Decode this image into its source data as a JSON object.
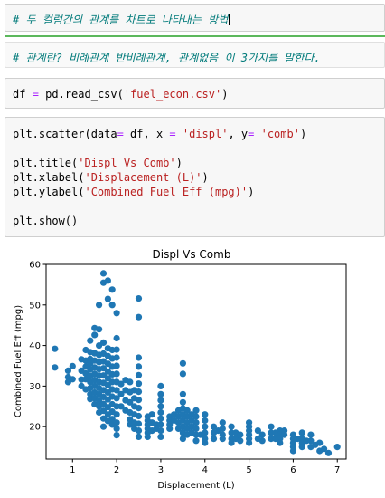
{
  "cells": {
    "md1": "# 두 컬럼간의 관계를 차트로 나타내는 방법",
    "md2": "# 관계란? 비례관계 반비례관계, 관계없음 이 3가지를 말한다.",
    "code1": {
      "var": "df",
      "eq": "=",
      "call": "pd.read_csv(",
      "arg": "'fuel_econ.csv'",
      "close": ")"
    },
    "code2": {
      "l1_a": "plt.scatter(data",
      "l1_eq1": "=",
      "l1_b": " df, x ",
      "l1_eq2": "=",
      "l1_s1": "'displ'",
      "l1_c": ", y",
      "l1_eq3": "=",
      "l1_s2": "'comb'",
      "l1_d": ")",
      "l2_a": "plt.title(",
      "l2_s": "'Displ Vs Comb'",
      "l2_b": ")",
      "l3_a": "plt.xlabel(",
      "l3_s": "'Displacement (L)'",
      "l3_b": ")",
      "l4_a": "plt.ylabel(",
      "l4_s": "'Combined Fuel Eff (mpg)'",
      "l4_b": ")",
      "l5": "plt.show()"
    }
  },
  "chart_data": {
    "type": "scatter",
    "title": "Displ Vs Comb",
    "xlabel": "Displacement (L)",
    "ylabel": "Combined Fuel Eff (mpg)",
    "xlim": [
      0.4,
      7.2
    ],
    "ylim": [
      12,
      60
    ],
    "xticks": [
      "1",
      "2",
      "3",
      "4",
      "5",
      "6",
      "7"
    ],
    "yticks": [
      "20",
      "30",
      "40",
      "50",
      "60"
    ],
    "color": "#1f77b4",
    "points": [
      [
        0.6,
        39.2
      ],
      [
        0.6,
        34.6
      ],
      [
        0.9,
        32.2
      ],
      [
        0.9,
        33.8
      ],
      [
        0.9,
        31.0
      ],
      [
        1.0,
        34.9
      ],
      [
        1.0,
        31.7
      ],
      [
        1.2,
        36.6
      ],
      [
        1.2,
        33.8
      ],
      [
        1.2,
        31.6
      ],
      [
        1.2,
        30.0
      ],
      [
        1.3,
        38.9
      ],
      [
        1.3,
        36.3
      ],
      [
        1.3,
        34.8
      ],
      [
        1.3,
        33.1
      ],
      [
        1.3,
        31.7
      ],
      [
        1.3,
        29.2
      ],
      [
        1.4,
        41.2
      ],
      [
        1.4,
        38.4
      ],
      [
        1.4,
        36.7
      ],
      [
        1.4,
        35.6
      ],
      [
        1.4,
        34.1
      ],
      [
        1.4,
        32.5
      ],
      [
        1.4,
        31.0
      ],
      [
        1.4,
        29.5
      ],
      [
        1.4,
        28.0
      ],
      [
        1.4,
        26.8
      ],
      [
        1.5,
        44.3
      ],
      [
        1.5,
        42.6
      ],
      [
        1.5,
        38.1
      ],
      [
        1.5,
        36.3
      ],
      [
        1.5,
        34.6
      ],
      [
        1.5,
        33.0
      ],
      [
        1.5,
        31.5
      ],
      [
        1.5,
        30.0
      ],
      [
        1.5,
        28.4
      ],
      [
        1.5,
        27.0
      ],
      [
        1.5,
        25.5
      ],
      [
        1.6,
        50.0
      ],
      [
        1.6,
        44.0
      ],
      [
        1.6,
        40.0
      ],
      [
        1.6,
        37.7
      ],
      [
        1.6,
        35.9
      ],
      [
        1.6,
        34.2
      ],
      [
        1.6,
        32.6
      ],
      [
        1.6,
        31.0
      ],
      [
        1.6,
        29.5
      ],
      [
        1.6,
        28.0
      ],
      [
        1.6,
        26.4
      ],
      [
        1.6,
        25.0
      ],
      [
        1.6,
        23.5
      ],
      [
        1.7,
        57.8
      ],
      [
        1.7,
        55.5
      ],
      [
        1.7,
        40.7
      ],
      [
        1.7,
        38.0
      ],
      [
        1.7,
        36.1
      ],
      [
        1.7,
        34.4
      ],
      [
        1.7,
        32.6
      ],
      [
        1.7,
        30.8
      ],
      [
        1.7,
        29.0
      ],
      [
        1.7,
        27.3
      ],
      [
        1.7,
        25.6
      ],
      [
        1.7,
        23.9
      ],
      [
        1.7,
        22.0
      ],
      [
        1.7,
        20.0
      ],
      [
        1.8,
        56.0
      ],
      [
        1.8,
        51.5
      ],
      [
        1.8,
        39.3
      ],
      [
        1.8,
        37.4
      ],
      [
        1.8,
        35.5
      ],
      [
        1.8,
        33.6
      ],
      [
        1.8,
        31.9
      ],
      [
        1.8,
        30.2
      ],
      [
        1.8,
        28.4
      ],
      [
        1.8,
        26.7
      ],
      [
        1.8,
        24.8
      ],
      [
        1.8,
        23.0
      ],
      [
        1.8,
        21.4
      ],
      [
        1.9,
        53.8
      ],
      [
        1.9,
        50.0
      ],
      [
        1.9,
        38.9
      ],
      [
        1.9,
        36.8
      ],
      [
        1.9,
        34.8
      ],
      [
        1.9,
        32.9
      ],
      [
        1.9,
        31.0
      ],
      [
        1.9,
        29.2
      ],
      [
        1.9,
        27.4
      ],
      [
        1.9,
        25.5
      ],
      [
        1.9,
        23.7
      ],
      [
        1.9,
        21.9
      ],
      [
        1.9,
        20.5
      ],
      [
        2.0,
        48.0
      ],
      [
        2.0,
        41.8
      ],
      [
        2.0,
        39.0
      ],
      [
        2.0,
        37.0
      ],
      [
        2.0,
        35.0
      ],
      [
        2.0,
        33.0
      ],
      [
        2.0,
        31.0
      ],
      [
        2.0,
        29.0
      ],
      [
        2.0,
        27.0
      ],
      [
        2.0,
        25.0
      ],
      [
        2.0,
        23.0
      ],
      [
        2.0,
        21.0
      ],
      [
        2.0,
        19.5
      ],
      [
        2.0,
        17.9
      ],
      [
        2.1,
        30.5
      ],
      [
        2.1,
        28.0
      ],
      [
        2.1,
        25.0
      ],
      [
        2.2,
        31.5
      ],
      [
        2.2,
        29.0
      ],
      [
        2.2,
        26.5
      ],
      [
        2.2,
        24.0
      ],
      [
        2.3,
        31.0
      ],
      [
        2.3,
        28.5
      ],
      [
        2.3,
        26.0
      ],
      [
        2.3,
        23.5
      ],
      [
        2.3,
        21.8
      ],
      [
        2.3,
        20.5
      ],
      [
        2.4,
        29.0
      ],
      [
        2.4,
        27.0
      ],
      [
        2.4,
        25.0
      ],
      [
        2.4,
        23.0
      ],
      [
        2.4,
        21.0
      ],
      [
        2.4,
        19.5
      ],
      [
        2.5,
        51.6
      ],
      [
        2.5,
        47.0
      ],
      [
        2.5,
        37.0
      ],
      [
        2.5,
        34.8
      ],
      [
        2.5,
        32.7
      ],
      [
        2.5,
        30.6
      ],
      [
        2.5,
        28.6
      ],
      [
        2.5,
        26.6
      ],
      [
        2.5,
        24.6
      ],
      [
        2.5,
        22.6
      ],
      [
        2.5,
        20.7
      ],
      [
        2.5,
        19.0
      ],
      [
        2.5,
        17.5
      ],
      [
        2.7,
        22.5
      ],
      [
        2.7,
        21.5
      ],
      [
        2.7,
        20.5
      ],
      [
        2.7,
        19.5
      ],
      [
        2.7,
        18.5
      ],
      [
        2.7,
        17.5
      ],
      [
        2.8,
        23.0
      ],
      [
        2.8,
        21.0
      ],
      [
        2.8,
        19.0
      ],
      [
        2.9,
        20.5
      ],
      [
        2.9,
        19.5
      ],
      [
        3.0,
        30.0
      ],
      [
        3.0,
        28.0
      ],
      [
        3.0,
        26.5
      ],
      [
        3.0,
        25.0
      ],
      [
        3.0,
        23.5
      ],
      [
        3.0,
        22.0
      ],
      [
        3.0,
        20.5
      ],
      [
        3.0,
        19.0
      ],
      [
        3.0,
        17.5
      ],
      [
        3.2,
        22.5
      ],
      [
        3.2,
        21.5
      ],
      [
        3.2,
        20.5
      ],
      [
        3.2,
        19.5
      ],
      [
        3.3,
        23.0
      ],
      [
        3.3,
        21.5
      ],
      [
        3.4,
        24.0
      ],
      [
        3.4,
        22.5
      ],
      [
        3.4,
        21.0
      ],
      [
        3.4,
        19.5
      ],
      [
        3.5,
        35.6
      ],
      [
        3.5,
        33.0
      ],
      [
        3.5,
        28.0
      ],
      [
        3.5,
        26.0
      ],
      [
        3.5,
        24.5
      ],
      [
        3.5,
        23.0
      ],
      [
        3.5,
        21.5
      ],
      [
        3.5,
        20.0
      ],
      [
        3.5,
        18.5
      ],
      [
        3.5,
        17.0
      ],
      [
        3.6,
        24.0
      ],
      [
        3.6,
        22.5
      ],
      [
        3.6,
        21.0
      ],
      [
        3.6,
        19.5
      ],
      [
        3.6,
        18.0
      ],
      [
        3.7,
        23.0
      ],
      [
        3.7,
        21.5
      ],
      [
        3.7,
        20.0
      ],
      [
        3.7,
        18.5
      ],
      [
        3.8,
        24.0
      ],
      [
        3.8,
        22.5
      ],
      [
        3.8,
        21.0
      ],
      [
        3.8,
        19.5
      ],
      [
        3.8,
        18.0
      ],
      [
        3.8,
        16.5
      ],
      [
        3.9,
        18.0
      ],
      [
        4.0,
        23.0
      ],
      [
        4.0,
        21.5
      ],
      [
        4.0,
        20.0
      ],
      [
        4.0,
        18.5
      ],
      [
        4.0,
        17.0
      ],
      [
        4.0,
        16.0
      ],
      [
        4.2,
        20.0
      ],
      [
        4.2,
        18.5
      ],
      [
        4.2,
        17.0
      ],
      [
        4.3,
        19.0
      ],
      [
        4.4,
        21.0
      ],
      [
        4.4,
        19.5
      ],
      [
        4.4,
        18.0
      ],
      [
        4.4,
        17.0
      ],
      [
        4.6,
        20.0
      ],
      [
        4.6,
        18.5
      ],
      [
        4.6,
        17.0
      ],
      [
        4.6,
        16.0
      ],
      [
        4.7,
        18.5
      ],
      [
        4.7,
        17.0
      ],
      [
        4.8,
        18.0
      ],
      [
        4.8,
        16.5
      ],
      [
        5.0,
        21.0
      ],
      [
        5.0,
        20.0
      ],
      [
        5.0,
        19.0
      ],
      [
        5.0,
        18.0
      ],
      [
        5.0,
        17.0
      ],
      [
        5.0,
        16.0
      ],
      [
        5.2,
        19.0
      ],
      [
        5.2,
        17.0
      ],
      [
        5.3,
        18.0
      ],
      [
        5.3,
        16.5
      ],
      [
        5.5,
        20.0
      ],
      [
        5.5,
        18.5
      ],
      [
        5.5,
        17.0
      ],
      [
        5.6,
        18.5
      ],
      [
        5.6,
        17.0
      ],
      [
        5.7,
        19.0
      ],
      [
        5.7,
        18.0
      ],
      [
        5.7,
        17.0
      ],
      [
        5.7,
        16.0
      ],
      [
        5.8,
        19.0
      ],
      [
        5.8,
        18.0
      ],
      [
        6.0,
        18.0
      ],
      [
        6.0,
        17.0
      ],
      [
        6.0,
        16.0
      ],
      [
        6.0,
        15.0
      ],
      [
        6.0,
        14.0
      ],
      [
        6.1,
        17.0
      ],
      [
        6.2,
        18.5
      ],
      [
        6.2,
        17.0
      ],
      [
        6.2,
        16.0
      ],
      [
        6.2,
        15.0
      ],
      [
        6.3,
        16.5
      ],
      [
        6.4,
        18.0
      ],
      [
        6.4,
        16.5
      ],
      [
        6.4,
        15.0
      ],
      [
        6.5,
        15.5
      ],
      [
        6.6,
        16.0
      ],
      [
        6.6,
        14.0
      ],
      [
        6.7,
        14.5
      ],
      [
        6.8,
        13.5
      ],
      [
        7.0,
        15.0
      ]
    ]
  }
}
